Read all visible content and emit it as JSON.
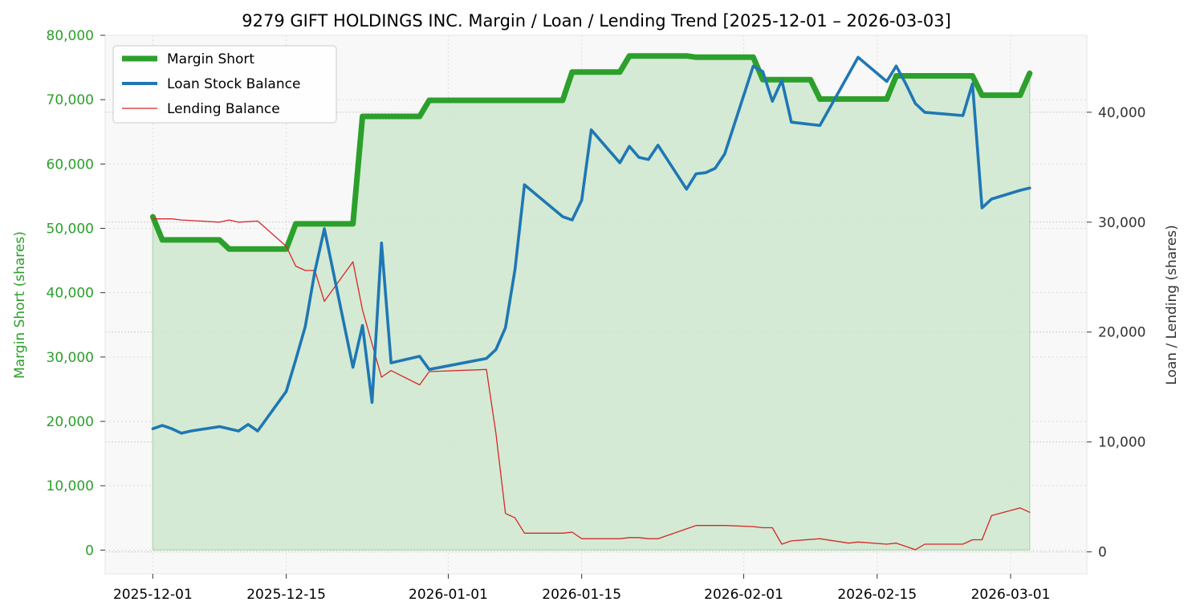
{
  "chart_data": {
    "type": "line",
    "title": "9279 GIFT HOLDINGS INC. Margin / Loan / Lending Trend [2025-12-01 – 2026-03-03]",
    "xlabel": "",
    "ylabel_left": "Margin Short (shares)",
    "ylabel_right": "Loan / Lending (shares)",
    "ylim_left": [
      -3700,
      80000
    ],
    "ylim_right": [
      -2000,
      47000
    ],
    "xlim": [
      "2025-11-26",
      "2026-03-09"
    ],
    "grid": true,
    "legend_position": "top-left",
    "x_ticks": [
      "2025-12-01",
      "2025-12-15",
      "2026-01-01",
      "2026-01-15",
      "2026-02-01",
      "2026-02-15",
      "2026-03-01"
    ],
    "y_ticks_left": [
      "0",
      "10,000",
      "20,000",
      "30,000",
      "40,000",
      "50,000",
      "60,000",
      "70,000",
      "80,000"
    ],
    "y_ticks_right": [
      "0",
      "10,000",
      "20,000",
      "30,000",
      "40,000"
    ],
    "colors": {
      "margin": "#2ca02c",
      "loan": "#1f77b4",
      "lending": "#d62728",
      "fill": "#cfe8cf",
      "plot_bg": "#f8f8f8"
    },
    "series": [
      {
        "name": "Margin Short",
        "axis": "left",
        "points": [
          [
            "2025-12-01",
            51800
          ],
          [
            "2025-12-02",
            48200
          ],
          [
            "2025-12-08",
            48200
          ],
          [
            "2025-12-09",
            46800
          ],
          [
            "2025-12-15",
            46800
          ],
          [
            "2025-12-16",
            50700
          ],
          [
            "2025-12-22",
            50700
          ],
          [
            "2025-12-23",
            67400
          ],
          [
            "2025-12-29",
            67400
          ],
          [
            "2025-12-30",
            69900
          ],
          [
            "2026-01-13",
            69900
          ],
          [
            "2026-01-14",
            74300
          ],
          [
            "2026-01-19",
            74300
          ],
          [
            "2026-01-20",
            76800
          ],
          [
            "2026-01-26",
            76800
          ],
          [
            "2026-01-27",
            76600
          ],
          [
            "2026-02-02",
            76600
          ],
          [
            "2026-02-03",
            73100
          ],
          [
            "2026-02-08",
            73100
          ],
          [
            "2026-02-09",
            70100
          ],
          [
            "2026-02-16",
            70100
          ],
          [
            "2026-02-17",
            73700
          ],
          [
            "2026-02-25",
            73700
          ],
          [
            "2026-02-26",
            70700
          ],
          [
            "2026-03-02",
            70700
          ],
          [
            "2026-03-03",
            74100
          ]
        ]
      },
      {
        "name": "Loan Stock Balance",
        "axis": "right",
        "points": [
          [
            "2025-12-01",
            11200
          ],
          [
            "2025-12-02",
            11500
          ],
          [
            "2025-12-03",
            11200
          ],
          [
            "2025-12-04",
            10800
          ],
          [
            "2025-12-05",
            11000
          ],
          [
            "2025-12-08",
            11400
          ],
          [
            "2025-12-10",
            11000
          ],
          [
            "2025-12-11",
            11600
          ],
          [
            "2025-12-12",
            11000
          ],
          [
            "2025-12-15",
            14600
          ],
          [
            "2025-12-16",
            17500
          ],
          [
            "2025-12-17",
            20500
          ],
          [
            "2025-12-18",
            25500
          ],
          [
            "2025-12-19",
            29400
          ],
          [
            "2025-12-22",
            16800
          ],
          [
            "2025-12-23",
            20600
          ],
          [
            "2025-12-24",
            13600
          ],
          [
            "2025-12-25",
            28100
          ],
          [
            "2025-12-26",
            17200
          ],
          [
            "2025-12-29",
            17800
          ],
          [
            "2025-12-30",
            16600
          ],
          [
            "2026-01-05",
            17600
          ],
          [
            "2026-01-06",
            18400
          ],
          [
            "2026-01-07",
            20400
          ],
          [
            "2026-01-08",
            25700
          ],
          [
            "2026-01-09",
            33400
          ],
          [
            "2026-01-13",
            30500
          ],
          [
            "2026-01-14",
            30200
          ],
          [
            "2026-01-15",
            32000
          ],
          [
            "2026-01-16",
            38400
          ],
          [
            "2026-01-19",
            35400
          ],
          [
            "2026-01-20",
            36900
          ],
          [
            "2026-01-21",
            35900
          ],
          [
            "2026-01-22",
            35700
          ],
          [
            "2026-01-23",
            37000
          ],
          [
            "2026-01-26",
            33000
          ],
          [
            "2026-01-27",
            34400
          ],
          [
            "2026-01-28",
            34500
          ],
          [
            "2026-01-29",
            34900
          ],
          [
            "2026-01-30",
            36200
          ],
          [
            "2026-02-02",
            44200
          ],
          [
            "2026-02-03",
            43700
          ],
          [
            "2026-02-04",
            41000
          ],
          [
            "2026-02-05",
            42900
          ],
          [
            "2026-02-06",
            39100
          ],
          [
            "2026-02-09",
            38800
          ],
          [
            "2026-02-13",
            45000
          ],
          [
            "2026-02-16",
            42800
          ],
          [
            "2026-02-17",
            44200
          ],
          [
            "2026-02-18",
            42600
          ],
          [
            "2026-02-19",
            40800
          ],
          [
            "2026-02-20",
            40000
          ],
          [
            "2026-02-24",
            39700
          ],
          [
            "2026-02-25",
            42600
          ],
          [
            "2026-02-26",
            31300
          ],
          [
            "2026-02-27",
            32100
          ],
          [
            "2026-03-02",
            32900
          ],
          [
            "2026-03-03",
            33100
          ]
        ]
      },
      {
        "name": "Lending Balance",
        "axis": "right",
        "points": [
          [
            "2025-12-01",
            30300
          ],
          [
            "2025-12-03",
            30300
          ],
          [
            "2025-12-04",
            30200
          ],
          [
            "2025-12-06",
            30100
          ],
          [
            "2025-12-08",
            30000
          ],
          [
            "2025-12-09",
            30200
          ],
          [
            "2025-12-10",
            30000
          ],
          [
            "2025-12-12",
            30100
          ],
          [
            "2025-12-15",
            27800
          ],
          [
            "2025-12-16",
            26000
          ],
          [
            "2025-12-17",
            25600
          ],
          [
            "2025-12-18",
            25600
          ],
          [
            "2025-12-19",
            22800
          ],
          [
            "2025-12-22",
            26400
          ],
          [
            "2025-12-23",
            22000
          ],
          [
            "2025-12-25",
            15900
          ],
          [
            "2025-12-26",
            16500
          ],
          [
            "2025-12-29",
            15200
          ],
          [
            "2025-12-30",
            16400
          ],
          [
            "2026-01-05",
            16600
          ],
          [
            "2026-01-06",
            10800
          ],
          [
            "2026-01-07",
            3500
          ],
          [
            "2026-01-08",
            3100
          ],
          [
            "2026-01-09",
            1700
          ],
          [
            "2026-01-13",
            1700
          ],
          [
            "2026-01-14",
            1800
          ],
          [
            "2026-01-15",
            1200
          ],
          [
            "2026-01-19",
            1200
          ],
          [
            "2026-01-20",
            1300
          ],
          [
            "2026-01-21",
            1300
          ],
          [
            "2026-01-22",
            1200
          ],
          [
            "2026-01-23",
            1200
          ],
          [
            "2026-01-26",
            2100
          ],
          [
            "2026-01-27",
            2400
          ],
          [
            "2026-01-30",
            2400
          ],
          [
            "2026-02-02",
            2300
          ],
          [
            "2026-02-03",
            2200
          ],
          [
            "2026-02-04",
            2200
          ],
          [
            "2026-02-05",
            700
          ],
          [
            "2026-02-06",
            1000
          ],
          [
            "2026-02-09",
            1200
          ],
          [
            "2026-02-12",
            800
          ],
          [
            "2026-02-13",
            900
          ],
          [
            "2026-02-16",
            700
          ],
          [
            "2026-02-17",
            800
          ],
          [
            "2026-02-18",
            500
          ],
          [
            "2026-02-19",
            200
          ],
          [
            "2026-02-20",
            700
          ],
          [
            "2026-02-24",
            700
          ],
          [
            "2026-02-25",
            1100
          ],
          [
            "2026-02-26",
            1100
          ],
          [
            "2026-02-27",
            3300
          ],
          [
            "2026-03-02",
            4000
          ],
          [
            "2026-03-03",
            3600
          ]
        ]
      }
    ]
  }
}
